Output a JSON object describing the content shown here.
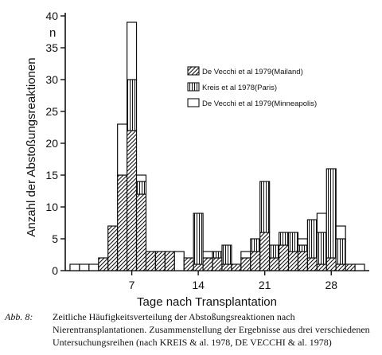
{
  "chart_data": {
    "type": "bar",
    "stacked": true,
    "title": "",
    "xlabel": "Tage nach Transplantation",
    "ylabel": "Anzahl der Abstoßungsreaktionen",
    "ylabel_extra": "n",
    "xlim": [
      0,
      32
    ],
    "ylim": [
      0,
      40
    ],
    "yticks": [
      0,
      5,
      10,
      15,
      20,
      25,
      30,
      35,
      40
    ],
    "xticks": [
      7,
      14,
      21,
      28
    ],
    "x": [
      1,
      2,
      3,
      4,
      5,
      6,
      7,
      8,
      9,
      10,
      11,
      12,
      13,
      14,
      15,
      16,
      17,
      18,
      19,
      20,
      21,
      22,
      23,
      24,
      25,
      26,
      27,
      28,
      29,
      30,
      31
    ],
    "series": [
      {
        "name": "De Vecchi et al 1979(Mailand)",
        "pattern": "hatch",
        "values": [
          0,
          0,
          0,
          2,
          7,
          15,
          22,
          12,
          3,
          3,
          3,
          0,
          2,
          1,
          2,
          2,
          1,
          1,
          2,
          3,
          6,
          2,
          4,
          3,
          3,
          2,
          1,
          2,
          1,
          1,
          0
        ]
      },
      {
        "name": "Kreis et al 1978(Paris)",
        "pattern": "vertical",
        "values": [
          0,
          0,
          0,
          0,
          0,
          0,
          8,
          2,
          0,
          0,
          0,
          0,
          0,
          8,
          0,
          1,
          3,
          0,
          0,
          2,
          8,
          2,
          2,
          3,
          1,
          6,
          5,
          14,
          4,
          0,
          0
        ]
      },
      {
        "name": "De Vecchi et al 1979(Minneapolis)",
        "pattern": "empty",
        "values": [
          1,
          1,
          1,
          0,
          0,
          8,
          9,
          1,
          0,
          0,
          0,
          3,
          0,
          0,
          1,
          0,
          0,
          0,
          1,
          0,
          0,
          0,
          0,
          0,
          1,
          0,
          3,
          0,
          2,
          0,
          1
        ]
      }
    ],
    "legend_position": "top-right"
  },
  "caption": {
    "label": "Abb. 8:",
    "text": "Zeitliche Häufigkeitsverteilung der Abstoßungsreaktionen nach Nierentransplantationen. Zusammenstellung der Ergebnisse aus drei verschiedenen Untersuchungsreihen (nach KREIS & al. 1978, DE VECCHI & al. 1978)"
  }
}
